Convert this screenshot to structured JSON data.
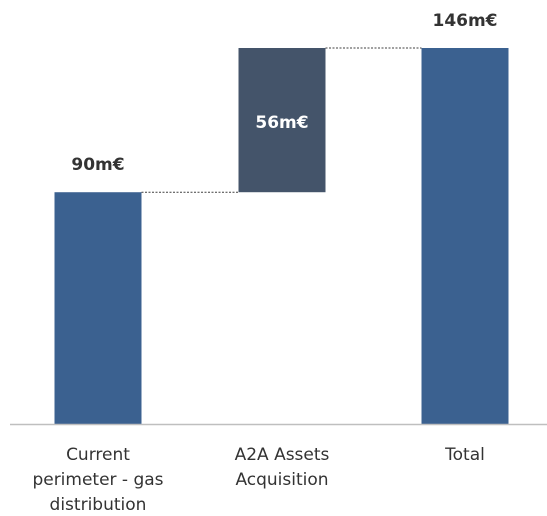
{
  "chart_data": {
    "type": "bar",
    "subtype": "waterfall",
    "title": "",
    "xlabel": "",
    "ylabel": "",
    "categories": [
      [
        "Current",
        "perimeter - gas",
        "distribution"
      ],
      [
        "A2A Assets",
        "Acquisition"
      ],
      [
        "Total"
      ]
    ],
    "category_text": [
      "Current perimeter - gas distribution",
      "A2A Assets Acquisition",
      "Total"
    ],
    "values": [
      90,
      56,
      146
    ],
    "bar_roles": [
      "base",
      "increment",
      "total"
    ],
    "data_labels": [
      "90m€",
      "56m€",
      "146m€"
    ],
    "unit": "m€",
    "ylim": [
      0,
      146
    ],
    "grid": false,
    "legend": "none",
    "colors": {
      "base": "#3b6190",
      "increment": "#44546a",
      "total": "#3b6190",
      "axis": "#bfbfbf",
      "connector": "#404040",
      "label_dark": "#333333",
      "label_light": "#ffffff"
    }
  }
}
